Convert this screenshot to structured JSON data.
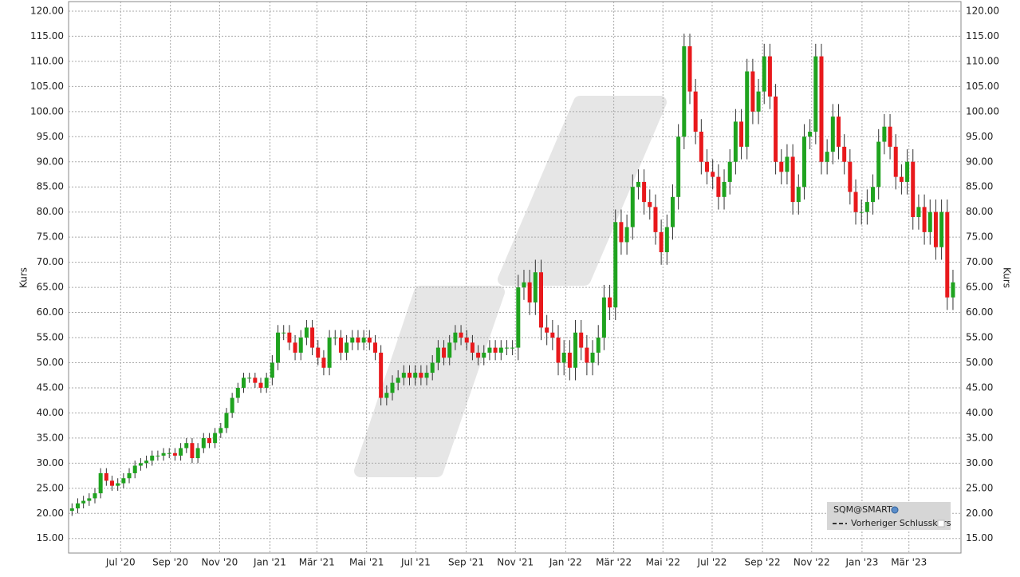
{
  "chart_data": {
    "type": "candlestick",
    "ylabel": "Kurs",
    "ylim": [
      12.1,
      121.9
    ],
    "xlim": [
      -0.6,
      155.4
    ],
    "grid": true,
    "yticks": [
      {
        "value": 15,
        "label": "15.00"
      },
      {
        "value": 20,
        "label": "20.00"
      },
      {
        "value": 25,
        "label": "25.00"
      },
      {
        "value": 30,
        "label": "30.00"
      },
      {
        "value": 35,
        "label": "35.00"
      },
      {
        "value": 40,
        "label": "40.00"
      },
      {
        "value": 45,
        "label": "45.00"
      },
      {
        "value": 50,
        "label": "50.00"
      },
      {
        "value": 55,
        "label": "55.00"
      },
      {
        "value": 60,
        "label": "60.00"
      },
      {
        "value": 65,
        "label": "65.00"
      },
      {
        "value": 70,
        "label": "70.00"
      },
      {
        "value": 75,
        "label": "75.00"
      },
      {
        "value": 80,
        "label": "80.00"
      },
      {
        "value": 85,
        "label": "85.00"
      },
      {
        "value": 90,
        "label": "90.00"
      },
      {
        "value": 95,
        "label": "95.00"
      },
      {
        "value": 100,
        "label": "100.00"
      },
      {
        "value": 105,
        "label": "105.00"
      },
      {
        "value": 110,
        "label": "110.00"
      },
      {
        "value": 115,
        "label": "115.00"
      },
      {
        "value": 120,
        "label": "120.00"
      }
    ],
    "xticks": [
      {
        "value": 8.5,
        "label": "Jul '20"
      },
      {
        "value": 17.2,
        "label": "Sep '20"
      },
      {
        "value": 25.8,
        "label": "Nov '20"
      },
      {
        "value": 34.6,
        "label": "Jan '21"
      },
      {
        "value": 42.8,
        "label": "Mär '21"
      },
      {
        "value": 51.5,
        "label": "Mai '21"
      },
      {
        "value": 60.1,
        "label": "Jul '21"
      },
      {
        "value": 68.9,
        "label": "Sep '21"
      },
      {
        "value": 77.5,
        "label": "Nov '21"
      },
      {
        "value": 86.3,
        "label": "Jan '22"
      },
      {
        "value": 94.7,
        "label": "Mär '22"
      },
      {
        "value": 103.3,
        "label": "Mai '22"
      },
      {
        "value": 111.9,
        "label": "Jul '22"
      },
      {
        "value": 120.7,
        "label": "Sep '22"
      },
      {
        "value": 129.3,
        "label": "Nov '22"
      },
      {
        "value": 138.1,
        "label": "Jan '23"
      },
      {
        "value": 146.3,
        "label": "Mär '23"
      }
    ],
    "series": [
      {
        "name": "SQM@SMART",
        "up_color": "#1fa31f",
        "down_color": "#e8191c",
        "open": [
          20.5,
          21,
          22,
          22.5,
          23,
          24,
          28,
          26.5,
          25.5,
          26,
          27,
          28,
          29.5,
          30,
          30.5,
          31.5,
          31.5,
          32,
          32,
          31.5,
          33,
          34,
          31,
          33,
          35,
          34,
          36,
          37,
          40,
          43,
          45,
          47,
          47,
          46,
          45,
          47,
          50,
          56,
          56,
          54,
          52,
          55,
          57,
          53,
          51,
          49,
          55,
          55,
          52,
          54,
          55,
          54,
          55,
          54,
          52,
          43,
          44,
          46,
          47,
          48,
          47,
          48,
          47,
          48,
          50,
          53,
          51,
          54,
          56,
          55,
          54,
          52,
          51,
          52,
          53,
          52,
          53,
          53,
          53,
          65,
          66,
          62,
          68,
          57,
          56,
          55,
          50,
          52,
          49,
          56,
          53,
          50,
          52,
          55,
          63,
          61,
          78,
          74,
          77,
          85,
          86,
          82,
          81,
          76,
          72,
          77,
          83,
          95,
          113,
          104,
          96,
          90,
          88,
          87,
          83,
          86,
          90,
          98,
          93,
          108,
          100,
          104,
          111,
          103,
          90,
          88,
          91,
          82,
          85,
          95,
          96,
          111,
          90,
          92,
          99,
          93,
          90,
          84,
          80,
          80,
          82,
          85,
          94,
          97,
          93,
          87,
          86,
          90,
          79,
          81,
          76,
          80,
          73,
          80,
          63
        ],
        "high": [
          22,
          23,
          23.5,
          24,
          25,
          29,
          29,
          27.5,
          27,
          28,
          29,
          30.5,
          31,
          31.5,
          32.5,
          32.5,
          33,
          33,
          33,
          34,
          35,
          35,
          34,
          36,
          36,
          37,
          38,
          41,
          44,
          46,
          48,
          48,
          48,
          47,
          48,
          51.5,
          57.5,
          57.5,
          57.5,
          55.5,
          56.5,
          58.5,
          58.5,
          54.5,
          52.5,
          56.5,
          56.5,
          56.5,
          55.5,
          56.5,
          56.5,
          56.5,
          56.5,
          55.5,
          53.5,
          45.5,
          47.5,
          48.5,
          49.5,
          49.5,
          49.5,
          49.5,
          49.5,
          51.5,
          54.5,
          54.5,
          55.5,
          57.5,
          57.5,
          56.5,
          55.5,
          53.5,
          53.5,
          54.5,
          54.5,
          54.5,
          54.5,
          54.5,
          67.5,
          68.5,
          68.5,
          70.5,
          70.5,
          59.5,
          58.5,
          57.5,
          54.5,
          54.5,
          58.5,
          58.5,
          55.5,
          54.5,
          57.5,
          65.5,
          65.5,
          80.5,
          80.5,
          79.5,
          87.5,
          88.5,
          88.5,
          84.5,
          83.5,
          78.5,
          79.5,
          85.5,
          97.5,
          115.5,
          115.5,
          106.5,
          98.5,
          92.5,
          90.5,
          89.5,
          88.5,
          92.5,
          100.5,
          100.5,
          110.5,
          110.5,
          106.5,
          113.5,
          113.5,
          105.5,
          92.5,
          93.5,
          93.5,
          87.5,
          97.5,
          98.5,
          113.5,
          113.5,
          94.5,
          101.5,
          101.5,
          95.5,
          92.5,
          86.5,
          82.5,
          84.5,
          87.5,
          96.5,
          99.5,
          99.5,
          95.5,
          89.5,
          92.5,
          92.5,
          83.5,
          83.5,
          82.5,
          82.5,
          82.5,
          82.5,
          68.5
        ],
        "low": [
          19.5,
          20,
          21,
          21.5,
          22,
          23,
          25.5,
          24.5,
          24.5,
          25,
          26,
          27,
          28.5,
          29,
          29.5,
          30.5,
          30.5,
          31,
          30.5,
          30.5,
          32,
          30,
          30,
          32,
          33,
          33,
          35,
          36,
          39,
          42,
          44,
          46,
          45,
          44,
          44,
          45.5,
          48.5,
          54.5,
          52.5,
          50.5,
          50.5,
          53.5,
          51.5,
          49.5,
          47.5,
          47.5,
          53.5,
          50.5,
          50.5,
          52.5,
          52.5,
          52.5,
          52.5,
          50.5,
          41.5,
          41.5,
          42.5,
          44.5,
          45.5,
          45.5,
          45.5,
          45.5,
          45.5,
          46.5,
          48.5,
          49.5,
          49.5,
          52.5,
          53.5,
          52.5,
          50.5,
          49.5,
          49.5,
          50.5,
          50.5,
          50.5,
          51.5,
          51.5,
          50.5,
          62.5,
          59.5,
          59.5,
          54.5,
          53.5,
          52.5,
          47.5,
          47.5,
          46.5,
          46.5,
          50.5,
          47.5,
          47.5,
          49.5,
          52.5,
          58.5,
          58.5,
          71.5,
          71.5,
          74.5,
          82.5,
          79.5,
          78.5,
          73.5,
          69.5,
          69.5,
          74.5,
          80.5,
          92.5,
          101.5,
          93.5,
          87.5,
          85.5,
          84.5,
          80.5,
          80.5,
          83.5,
          87.5,
          90.5,
          90.5,
          97.5,
          97.5,
          101.5,
          100.5,
          87.5,
          85.5,
          85.5,
          79.5,
          79.5,
          82.5,
          92.5,
          93.5,
          87.5,
          87.5,
          89.5,
          90.5,
          87.5,
          81.5,
          77.5,
          77.5,
          77.5,
          79.5,
          82.5,
          91.5,
          90.5,
          84.5,
          83.5,
          83.5,
          76.5,
          76.5,
          73.5,
          73.5,
          70.5,
          70.5,
          60.5,
          60.5
        ],
        "close": [
          21,
          22,
          22.5,
          23,
          24,
          28,
          26.5,
          25.5,
          26,
          27,
          28,
          29.5,
          30,
          30.5,
          31.5,
          31.5,
          32,
          32,
          31.5,
          33,
          34,
          31,
          33,
          35,
          34,
          36,
          37,
          40,
          43,
          45,
          47,
          47,
          46,
          45,
          47,
          50,
          56,
          56,
          54,
          52,
          55,
          57,
          53,
          51,
          49,
          55,
          55,
          52,
          54,
          55,
          54,
          55,
          54,
          52,
          43,
          44,
          46,
          47,
          48,
          47,
          48,
          47,
          48,
          50,
          53,
          51,
          54,
          56,
          55,
          54,
          52,
          51,
          52,
          53,
          52,
          53,
          53,
          53,
          65,
          66,
          62,
          68,
          57,
          56,
          55,
          50,
          52,
          49,
          56,
          53,
          50,
          52,
          55,
          63,
          61,
          78,
          74,
          77,
          85,
          86,
          82,
          81,
          76,
          72,
          77,
          83,
          95,
          113,
          104,
          96,
          90,
          88,
          87,
          83,
          86,
          90,
          98,
          93,
          108,
          100,
          104,
          111,
          103,
          90,
          88,
          91,
          82,
          85,
          95,
          96,
          111,
          90,
          92,
          99,
          93,
          90,
          84,
          80,
          80,
          82,
          85,
          94,
          97,
          93,
          87,
          86,
          90,
          79,
          81,
          76,
          80,
          73,
          80,
          63,
          66
        ]
      }
    ],
    "previous_close_label": "Vorheriger Schlusskurs"
  }
}
